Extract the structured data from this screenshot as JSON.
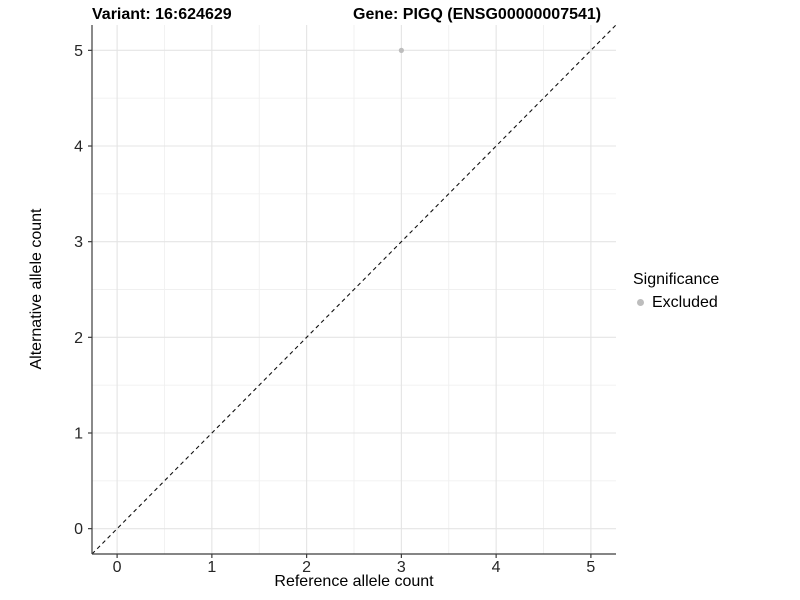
{
  "chart_data": {
    "type": "scatter",
    "title_left": "Variant: 16:624629",
    "title_right": "Gene: PIGQ (ENSG00000007541)",
    "xlabel": "Reference allele count",
    "ylabel": "Alternative allele count",
    "xlim": [
      0,
      5
    ],
    "ylim": [
      0,
      5
    ],
    "xticks": [
      0,
      1,
      2,
      3,
      4,
      5
    ],
    "yticks": [
      0,
      1,
      2,
      3,
      4,
      5
    ],
    "grid": {
      "major": true,
      "minor": true
    },
    "series": [
      {
        "name": "Excluded",
        "color": "#bdbdbd",
        "points": [
          {
            "x": 3,
            "y": 5
          }
        ]
      }
    ],
    "identity_line": {
      "from": [
        0,
        0
      ],
      "to": [
        5,
        5
      ],
      "style": "dashed",
      "color": "#111111"
    },
    "legend": {
      "position": "right",
      "title": "Significance",
      "entries": [
        {
          "label": "Excluded",
          "color": "#bdbdbd"
        }
      ]
    },
    "colors": {
      "background": "#ffffff",
      "grid_major": "#e4e4e4",
      "grid_minor": "#f0f0f0",
      "axis_line": "#3c3c3c",
      "tick_text": "#262626",
      "title_text": "#000000"
    }
  }
}
